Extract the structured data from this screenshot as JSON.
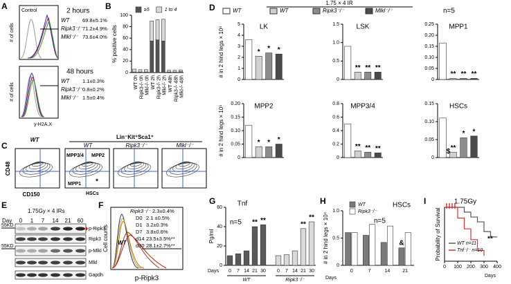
{
  "panel_letters": [
    "A",
    "B",
    "C",
    "D",
    "E",
    "F",
    "G",
    "H",
    "I"
  ],
  "panel_a": {
    "control": "Control",
    "y_label": "# of cells",
    "x_label": "γ-H2A.X",
    "timepoints": [
      {
        "label": "2 hours",
        "rows": [
          {
            "genotype": "WT",
            "value": "69.8±5.1%"
          },
          {
            "genotype": "Ripk3⁻/⁻",
            "value": "71.2±4.9%"
          },
          {
            "genotype": "Mlkl⁻/⁻",
            "value": "73.6±4.0%"
          }
        ]
      },
      {
        "label": "48 hours",
        "rows": [
          {
            "genotype": "WT",
            "value": "1.1±0.3%"
          },
          {
            "genotype": "Ripk3⁻/⁻",
            "value": "0.8±0.2%"
          },
          {
            "genotype": "Mlkl⁻/⁻",
            "value": "1.5±0.4%"
          }
        ]
      }
    ]
  },
  "panel_c": {
    "genotype_left": "WT",
    "gate": "Lin⁻Kit⁺Sca1⁺",
    "genotypes": [
      "WT",
      "Ripk3⁻/⁻",
      "Mlkl⁻/⁻"
    ],
    "populations": [
      "MPP3/4",
      "MPP2",
      "MPP1",
      "HSCs"
    ],
    "star": "*",
    "y_label": "CD48",
    "x_label": "CD150"
  },
  "panel_d": {
    "treatment": "1.75 × 4 IR",
    "n": "n=5",
    "legend": [
      "WT",
      "WT",
      "Ripk3⁻/⁻",
      "Mlkl⁻/⁻"
    ]
  },
  "panel_e": {
    "treatment": "1.75Gy × 4 IRs",
    "day_label": "Day",
    "days": [
      "0",
      "1",
      "7",
      "14",
      "21",
      "60"
    ],
    "markers": [
      "55KD",
      "55KD"
    ],
    "blots": [
      "p-Ripk3",
      "Ripk3",
      "p-Mlkl",
      "Mlkl",
      "Gapdh"
    ]
  },
  "panel_f": {
    "knockout": {
      "label": "Ripk3⁻/⁻",
      "value": "2.3±0.4%"
    },
    "rows": [
      {
        "label": "D0",
        "value": "2.1 ±0.5%"
      },
      {
        "label": "D1",
        "value": "3.2±0.3%"
      },
      {
        "label": "D7",
        "value": "3.8±0.6%"
      },
      {
        "label": "d14",
        "value": "23.5±3.5%**"
      },
      {
        "label": "d30",
        "value": "28.1±2.7%**"
      }
    ],
    "genotype": "WT",
    "y_label": "Cell counts",
    "x_label": "p-Ripk3"
  },
  "chart_data": [
    {
      "type": "bar",
      "bar_mode": "stacked",
      "y_label": "% positive cells",
      "legend": true,
      "categories": [
        "WT 0h",
        "Ripk3-/- 0h",
        "Mlkl-/- 0h",
        "WT 2h",
        "Ripk3-/- 2h",
        "Mlkl-/- 2h",
        "WT 48h",
        "Ripk3-/- 48h",
        "Mlkl-/- 48h"
      ],
      "series": [
        {
          "name": "≥5",
          "color": "#555555",
          "values": [
            1,
            1,
            1,
            55,
            57,
            55,
            1,
            1,
            1.5
          ]
        },
        {
          "name": "1 to 4",
          "color": "#d9d9d9",
          "values": [
            5,
            4,
            4,
            35,
            35,
            38,
            3,
            3,
            3
          ]
        }
      ],
      "ylim": [
        0,
        100
      ],
      "yticks": [
        0,
        20,
        40,
        60,
        80,
        100
      ]
    },
    {
      "type": "bar",
      "title": "LK",
      "y_label": "# in 2 hind legs × 10⁵",
      "colors": [
        "#ffffff",
        "#d0d0d0",
        "#8c8c8c",
        "#4a4a4a"
      ],
      "values": [
        3.6,
        2.1,
        2.4,
        2.3
      ],
      "stars": [
        null,
        "*",
        "*",
        "*"
      ],
      "ylim": [
        0,
        5
      ],
      "yticks": [
        0,
        1,
        2,
        3,
        4,
        5
      ]
    },
    {
      "type": "bar",
      "title": "LSK",
      "colors": [
        "#ffffff",
        "#d0d0d0",
        "#8c8c8c",
        "#4a4a4a"
      ],
      "values": [
        0.9,
        0.2,
        0.2,
        0.2
      ],
      "stars": [
        null,
        "**",
        "**",
        "**"
      ],
      "ylim": [
        0,
        1.5
      ],
      "yticks": [
        0,
        0.5,
        {
          "value": 1,
          "label": "1.0"
        },
        1.5
      ]
    },
    {
      "type": "bar",
      "title": "MPP1",
      "colors": [
        "#ffffff",
        "#d0d0d0",
        "#8c8c8c",
        "#4a4a4a"
      ],
      "values": [
        0.165,
        0.005,
        0.005,
        0.005
      ],
      "stars": [
        null,
        "**",
        "**",
        "**"
      ],
      "ylim": [
        0,
        0.25
      ],
      "yticks": [
        0,
        0.05,
        {
          "value": 0.1,
          "label": "0.10"
        },
        0.15,
        {
          "value": 0.2,
          "label": "0.20"
        },
        0.25
      ]
    },
    {
      "type": "bar",
      "title": "MPP2",
      "y_label": "# in 2 hind legs × 10⁵",
      "colors": [
        "#ffffff",
        "#d0d0d0",
        "#8c8c8c",
        "#4a4a4a"
      ],
      "values": [
        0.12,
        0.04,
        0.04,
        0.05
      ],
      "stars": [
        null,
        "*",
        "*",
        "*"
      ],
      "ylim": [
        0,
        0.2
      ],
      "yticks": [
        0,
        0.05,
        {
          "value": 0.1,
          "label": "0.10"
        },
        0.15,
        {
          "value": 0.2,
          "label": "0.20"
        }
      ]
    },
    {
      "type": "bar",
      "title": "MPP3/4",
      "colors": [
        "#ffffff",
        "#d0d0d0",
        "#8c8c8c",
        "#4a4a4a"
      ],
      "values": [
        0.5,
        0.1,
        0.08,
        0.07
      ],
      "stars": [
        null,
        "**",
        "**",
        "**"
      ],
      "ylim": [
        0,
        0.8
      ],
      "yticks": [
        0,
        0.2,
        0.4,
        0.6,
        0.8
      ]
    },
    {
      "type": "bar",
      "title": "HSCs",
      "colors": [
        "#ffffff",
        "#d0d0d0",
        "#8c8c8c",
        "#4a4a4a"
      ],
      "values": [
        0.11,
        0.015,
        0.055,
        0.06
      ],
      "stars": [
        null,
        "**",
        "*",
        "*"
      ],
      "stars_below": [
        null,
        "$",
        null,
        null
      ],
      "ylim": [
        0,
        0.15
      ],
      "yticks": [
        0,
        0.05,
        {
          "value": 0.1,
          "label": "0.10"
        },
        0.15
      ]
    },
    {
      "type": "bar",
      "bar_mode": "blocks",
      "title": "Tnf",
      "note": "n=5",
      "y_label": "Pg/ml",
      "x_label": "Days",
      "categories": [
        "0",
        "7",
        "14",
        "21",
        "30"
      ],
      "series": [
        {
          "name": "WT",
          "color": "#5a5a5a",
          "values": [
            10,
            12,
            15,
            40,
            42
          ],
          "stars": [
            null,
            null,
            null,
            "**",
            "**"
          ]
        },
        {
          "name": "Ripk3⁻/⁻",
          "color": "#d9d9d9",
          "values": [
            10,
            11,
            15,
            38,
            45
          ],
          "stars": [
            null,
            null,
            null,
            "**",
            "**"
          ]
        }
      ],
      "ylim": [
        0,
        60
      ],
      "yticks": [
        0,
        20,
        40,
        60
      ]
    },
    {
      "type": "bar",
      "bar_mode": "grouped",
      "title": "HSCs",
      "note": "n=5",
      "legend": true,
      "y_label": "# in 2 hind legs × 10⁴",
      "x_label": "Days",
      "categories": [
        "0",
        "7",
        "14",
        "21"
      ],
      "series": [
        {
          "name": "WT",
          "color": "#7a7a7a",
          "values": [
            0.6,
            0.55,
            0.42,
            0.32
          ],
          "stars": [
            null,
            null,
            null,
            "&"
          ]
        },
        {
          "name": "Ripk3⁻/⁻",
          "color": "#ffffff",
          "values": [
            0.6,
            0.75,
            0.72,
            0.6
          ]
        }
      ],
      "ylim": [
        0,
        1
      ],
      "yticks": [
        0,
        0.5,
        {
          "value": 1,
          "label": "1.0"
        }
      ]
    },
    {
      "type": "line",
      "title": "1.75Gy",
      "y_label": "Probability of Survival",
      "x_label": "Days",
      "legend": true,
      "annotation": "**",
      "series": [
        {
          "name": "WT  n=11",
          "color": "#555555",
          "x": [
            0,
            50,
            150,
            200,
            250,
            300,
            350,
            400
          ],
          "values": [
            1,
            1,
            0.91,
            0.82,
            0.73,
            0.55,
            0.45,
            0.45
          ]
        },
        {
          "name": "Tnf⁻/⁻  n=10",
          "color": "#d33333",
          "x": [
            0,
            50,
            100,
            150,
            200,
            250,
            300
          ],
          "values": [
            1,
            1,
            0.8,
            0.6,
            0.4,
            0.2,
            0.1
          ]
        }
      ],
      "xlim": [
        0,
        400
      ],
      "xticks": [
        0,
        100,
        200,
        300,
        400
      ],
      "ylim": [
        0,
        1
      ]
    }
  ]
}
